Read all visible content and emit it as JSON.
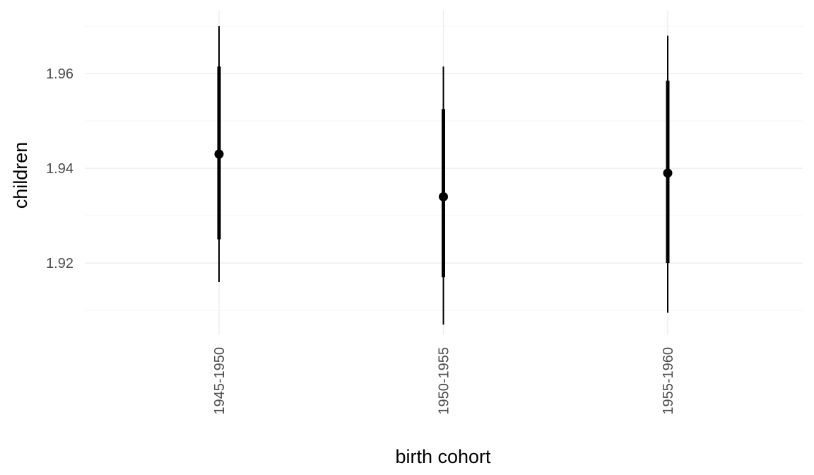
{
  "chart_data": {
    "type": "pointrange",
    "xlabel": "birth cohort",
    "ylabel": "children",
    "categories": [
      "1945-1950",
      "1950-1955",
      "1955-1960"
    ],
    "points": [
      {
        "category": "1945-1950",
        "estimate": 1.943,
        "inner_low": 1.925,
        "inner_high": 1.9615,
        "outer_low": 1.916,
        "outer_high": 1.97
      },
      {
        "category": "1950-1955",
        "estimate": 1.934,
        "inner_low": 1.917,
        "inner_high": 1.9525,
        "outer_low": 1.907,
        "outer_high": 1.9615
      },
      {
        "category": "1955-1960",
        "estimate": 1.939,
        "inner_low": 1.92,
        "inner_high": 1.9585,
        "outer_low": 1.9095,
        "outer_high": 1.968
      }
    ],
    "ylim": [
      1.9048,
      1.9733
    ],
    "yticks": [
      1.92,
      1.94,
      1.96
    ],
    "ytick_labels": [
      "1.92",
      "1.94",
      "1.96"
    ],
    "ygrid_minor": [
      1.91,
      1.93,
      1.95,
      1.97
    ],
    "grid": true,
    "colors": {
      "marks": "#000000",
      "grid_major": "#ebebeb",
      "grid_minor": "#f5f5f5",
      "tick_text": "#4d4d4d"
    }
  }
}
